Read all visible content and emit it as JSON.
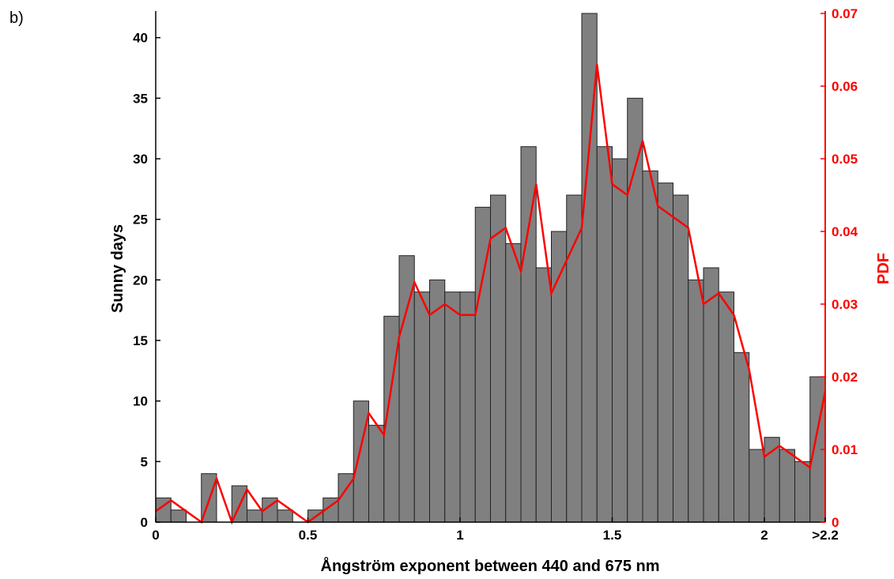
{
  "panel_label": "b)",
  "chart_data": {
    "type": "bar",
    "xlabel": "Ångström exponent between 440 and 675 nm",
    "ylabel_left": "Sunny days",
    "ylabel_right": "PDF",
    "xlim": [
      0,
      2.2
    ],
    "ylim_left": [
      0,
      42
    ],
    "ylim_right": [
      0,
      0.07
    ],
    "x_ticks": [
      {
        "value": 0,
        "label": "0"
      },
      {
        "value": 0.5,
        "label": "0.5"
      },
      {
        "value": 1,
        "label": "1"
      },
      {
        "value": 1.5,
        "label": "1.5"
      },
      {
        "value": 2,
        "label": "2"
      },
      {
        "value": 2.2,
        "label": ">2.2"
      }
    ],
    "y_ticks_left": [
      "0",
      "5",
      "10",
      "15",
      "20",
      "25",
      "30",
      "35",
      "40"
    ],
    "y_ticks_right": [
      "0",
      "0.01",
      "0.02",
      "0.03",
      "0.04",
      "0.05",
      "0.06",
      "0.07"
    ],
    "bar_width": 0.05,
    "bar_color": "#808080",
    "line_color": "#ff0000",
    "series": [
      {
        "kind": "histogram",
        "x": [
          0.025,
          0.075,
          0.125,
          0.175,
          0.225,
          0.275,
          0.325,
          0.375,
          0.425,
          0.475,
          0.525,
          0.575,
          0.625,
          0.675,
          0.725,
          0.775,
          0.825,
          0.875,
          0.925,
          0.975,
          1.025,
          1.075,
          1.125,
          1.175,
          1.225,
          1.275,
          1.325,
          1.375,
          1.425,
          1.475,
          1.525,
          1.575,
          1.625,
          1.675,
          1.725,
          1.775,
          1.825,
          1.875,
          1.925,
          1.975,
          2.025,
          2.075,
          2.125,
          2.175,
          2.225
        ],
        "values": [
          2,
          1,
          0,
          4,
          0,
          3,
          1,
          2,
          1,
          0,
          1,
          2,
          4,
          10,
          8,
          17,
          22,
          19,
          20,
          19,
          19,
          26,
          27,
          23,
          31,
          21,
          24,
          27,
          42,
          31,
          30,
          35,
          29,
          28,
          27,
          20,
          21,
          19,
          14,
          6,
          7,
          6,
          5,
          12,
          0
        ]
      },
      {
        "kind": "pdf_line",
        "x": [
          0,
          0.05,
          0.1,
          0.15,
          0.2,
          0.25,
          0.3,
          0.35,
          0.4,
          0.45,
          0.5,
          0.55,
          0.6,
          0.65,
          0.7,
          0.75,
          0.8,
          0.85,
          0.9,
          0.95,
          1,
          1.05,
          1.1,
          1.15,
          1.2,
          1.25,
          1.3,
          1.35,
          1.4,
          1.45,
          1.5,
          1.55,
          1.6,
          1.65,
          1.7,
          1.75,
          1.8,
          1.85,
          1.9,
          1.95,
          2,
          2.05,
          2.1,
          2.15,
          2.2
        ],
        "values": [
          0.0015,
          0.003,
          0.0015,
          0,
          0.006,
          0,
          0.0045,
          0.0015,
          0.003,
          0.0015,
          0,
          0.0015,
          0.003,
          0.006,
          0.015,
          0.012,
          0.0255,
          0.033,
          0.0285,
          0.03,
          0.0285,
          0.0285,
          0.039,
          0.0405,
          0.0345,
          0.0465,
          0.0315,
          0.036,
          0.0405,
          0.063,
          0.0465,
          0.045,
          0.0525,
          0.0435,
          0.042,
          0.0405,
          0.03,
          0.0315,
          0.0285,
          0.021,
          0.009,
          0.0105,
          0.009,
          0.0075,
          0.018
        ]
      }
    ]
  }
}
